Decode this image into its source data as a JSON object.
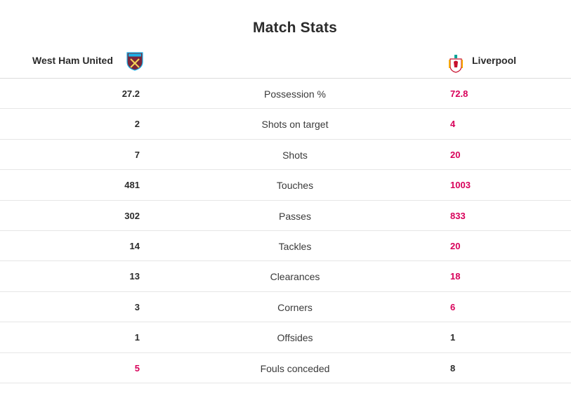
{
  "title": "Match Stats",
  "home": {
    "name": "West Ham United"
  },
  "away": {
    "name": "Liverpool"
  },
  "colors": {
    "highlight": "#d8005a",
    "text": "#2b2b2b"
  },
  "stats": [
    {
      "label": "Possession %",
      "home": "27.2",
      "away": "72.8",
      "winner": "away"
    },
    {
      "label": "Shots on target",
      "home": "2",
      "away": "4",
      "winner": "away"
    },
    {
      "label": "Shots",
      "home": "7",
      "away": "20",
      "winner": "away"
    },
    {
      "label": "Touches",
      "home": "481",
      "away": "1003",
      "winner": "away"
    },
    {
      "label": "Passes",
      "home": "302",
      "away": "833",
      "winner": "away"
    },
    {
      "label": "Tackles",
      "home": "14",
      "away": "20",
      "winner": "away"
    },
    {
      "label": "Clearances",
      "home": "13",
      "away": "18",
      "winner": "away"
    },
    {
      "label": "Corners",
      "home": "3",
      "away": "6",
      "winner": "away"
    },
    {
      "label": "Offsides",
      "home": "1",
      "away": "1",
      "winner": "none"
    },
    {
      "label": "Fouls conceded",
      "home": "5",
      "away": "8",
      "winner": "home"
    }
  ]
}
